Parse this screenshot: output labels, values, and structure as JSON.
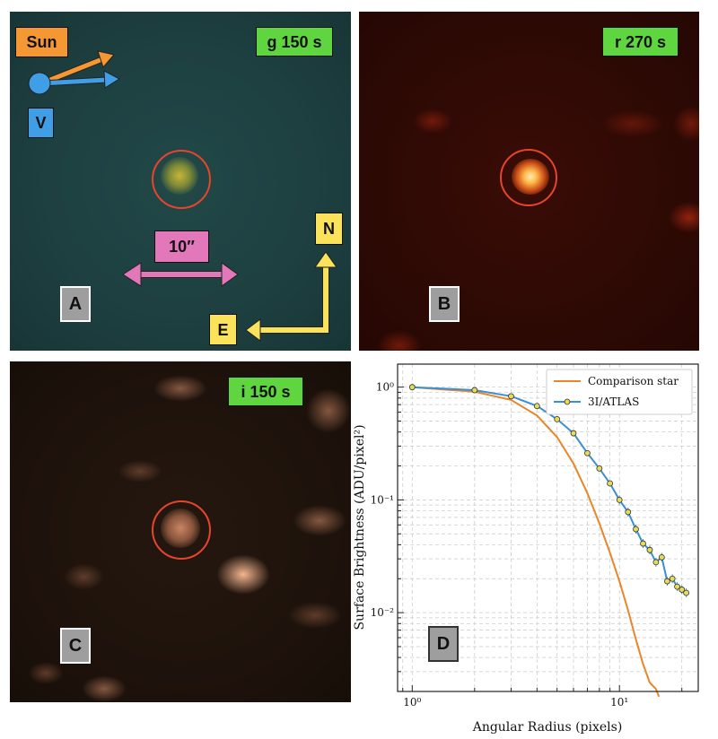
{
  "panel_a": {
    "label": "A",
    "exposure": "g 150 s",
    "sun_label": "Sun",
    "velocity_label": "V",
    "scale_label": "10″",
    "north_label": "N",
    "east_label": "E",
    "colors": {
      "sun": "#f59733",
      "velocity": "#3f9ee6",
      "scale": "#e277ba",
      "compass": "#fbe25b",
      "ring": "#e6452c"
    }
  },
  "panel_b": {
    "label": "B",
    "exposure": "r 270 s"
  },
  "panel_c": {
    "label": "C",
    "exposure": "i 150 s"
  },
  "panel_d": {
    "label": "D"
  },
  "chart_data": {
    "type": "line",
    "xlabel": "Angular Radius (pixels)",
    "ylabel": "Surface Brightness (ADU/pixel²)",
    "xscale": "log",
    "yscale": "log",
    "xlim": [
      0.85,
      24
    ],
    "ylim": [
      0.002,
      1.6
    ],
    "x_ticks": [
      {
        "v": 1,
        "label": "10⁰"
      },
      {
        "v": 10,
        "label": "10¹"
      }
    ],
    "y_ticks": [
      {
        "v": 1,
        "label": "10⁰"
      },
      {
        "v": 0.1,
        "label": "10⁻¹"
      },
      {
        "v": 0.01,
        "label": "10⁻²"
      }
    ],
    "grid": true,
    "legend_position": "top-right",
    "series": [
      {
        "name": "Comparison star",
        "color": "#e8862a",
        "markers": false,
        "x": [
          1,
          2,
          3,
          4,
          5,
          6,
          7,
          8,
          9,
          10,
          11,
          12,
          13,
          14,
          15,
          15.5
        ],
        "y": [
          1.0,
          0.91,
          0.77,
          0.56,
          0.36,
          0.21,
          0.115,
          0.062,
          0.034,
          0.019,
          0.0105,
          0.0058,
          0.0035,
          0.0024,
          0.0021,
          0.0018
        ]
      },
      {
        "name": "3I/ATLAS",
        "color": "#3a8fd6",
        "markers": true,
        "x": [
          1,
          2,
          3,
          4,
          5,
          6,
          7,
          8,
          9,
          10,
          11,
          12,
          13,
          14,
          15,
          16,
          17,
          18,
          19,
          20,
          21
        ],
        "y": [
          1.0,
          0.94,
          0.83,
          0.68,
          0.52,
          0.39,
          0.26,
          0.19,
          0.14,
          0.1,
          0.078,
          0.055,
          0.041,
          0.036,
          0.028,
          0.031,
          0.019,
          0.02,
          0.017,
          0.016,
          0.015
        ]
      }
    ]
  }
}
